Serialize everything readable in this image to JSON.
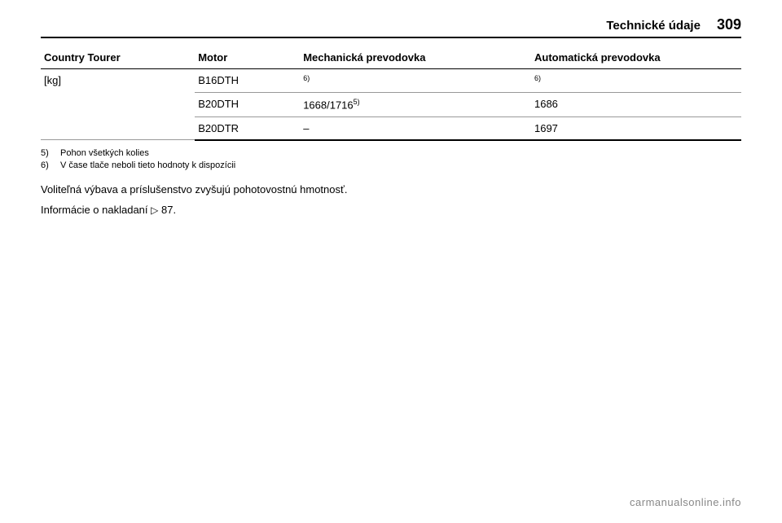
{
  "header": {
    "section_title": "Technické údaje",
    "page_number": "309"
  },
  "table": {
    "columns": [
      "Country Tourer",
      "Motor",
      "Mechanická prevodovka",
      "Automatická prevodovka"
    ],
    "model_label": "[kg]",
    "rows": [
      {
        "engine": "B16DTH",
        "manual_html": "<sup>6)</sup>",
        "auto_html": "<sup>6)</sup>"
      },
      {
        "engine": "B20DTH",
        "manual_html": "1668/1716<sup>5)</sup>",
        "auto_html": "1686"
      },
      {
        "engine": "B20DTR",
        "manual_html": "–",
        "auto_html": "1697"
      }
    ]
  },
  "footnotes": [
    {
      "marker": "5)",
      "text": "Pohon všetkých kolies"
    },
    {
      "marker": "6)",
      "text": "V čase tlače neboli tieto hodnoty k dispozícii"
    }
  ],
  "body": {
    "line1": "Voliteľná výbava a príslušenstvo zvyšujú pohotovostnú hmotnosť.",
    "line2_prefix": "Informácie o nakladaní ",
    "line2_ref": "87."
  },
  "watermark": "carmanualsonline.info"
}
